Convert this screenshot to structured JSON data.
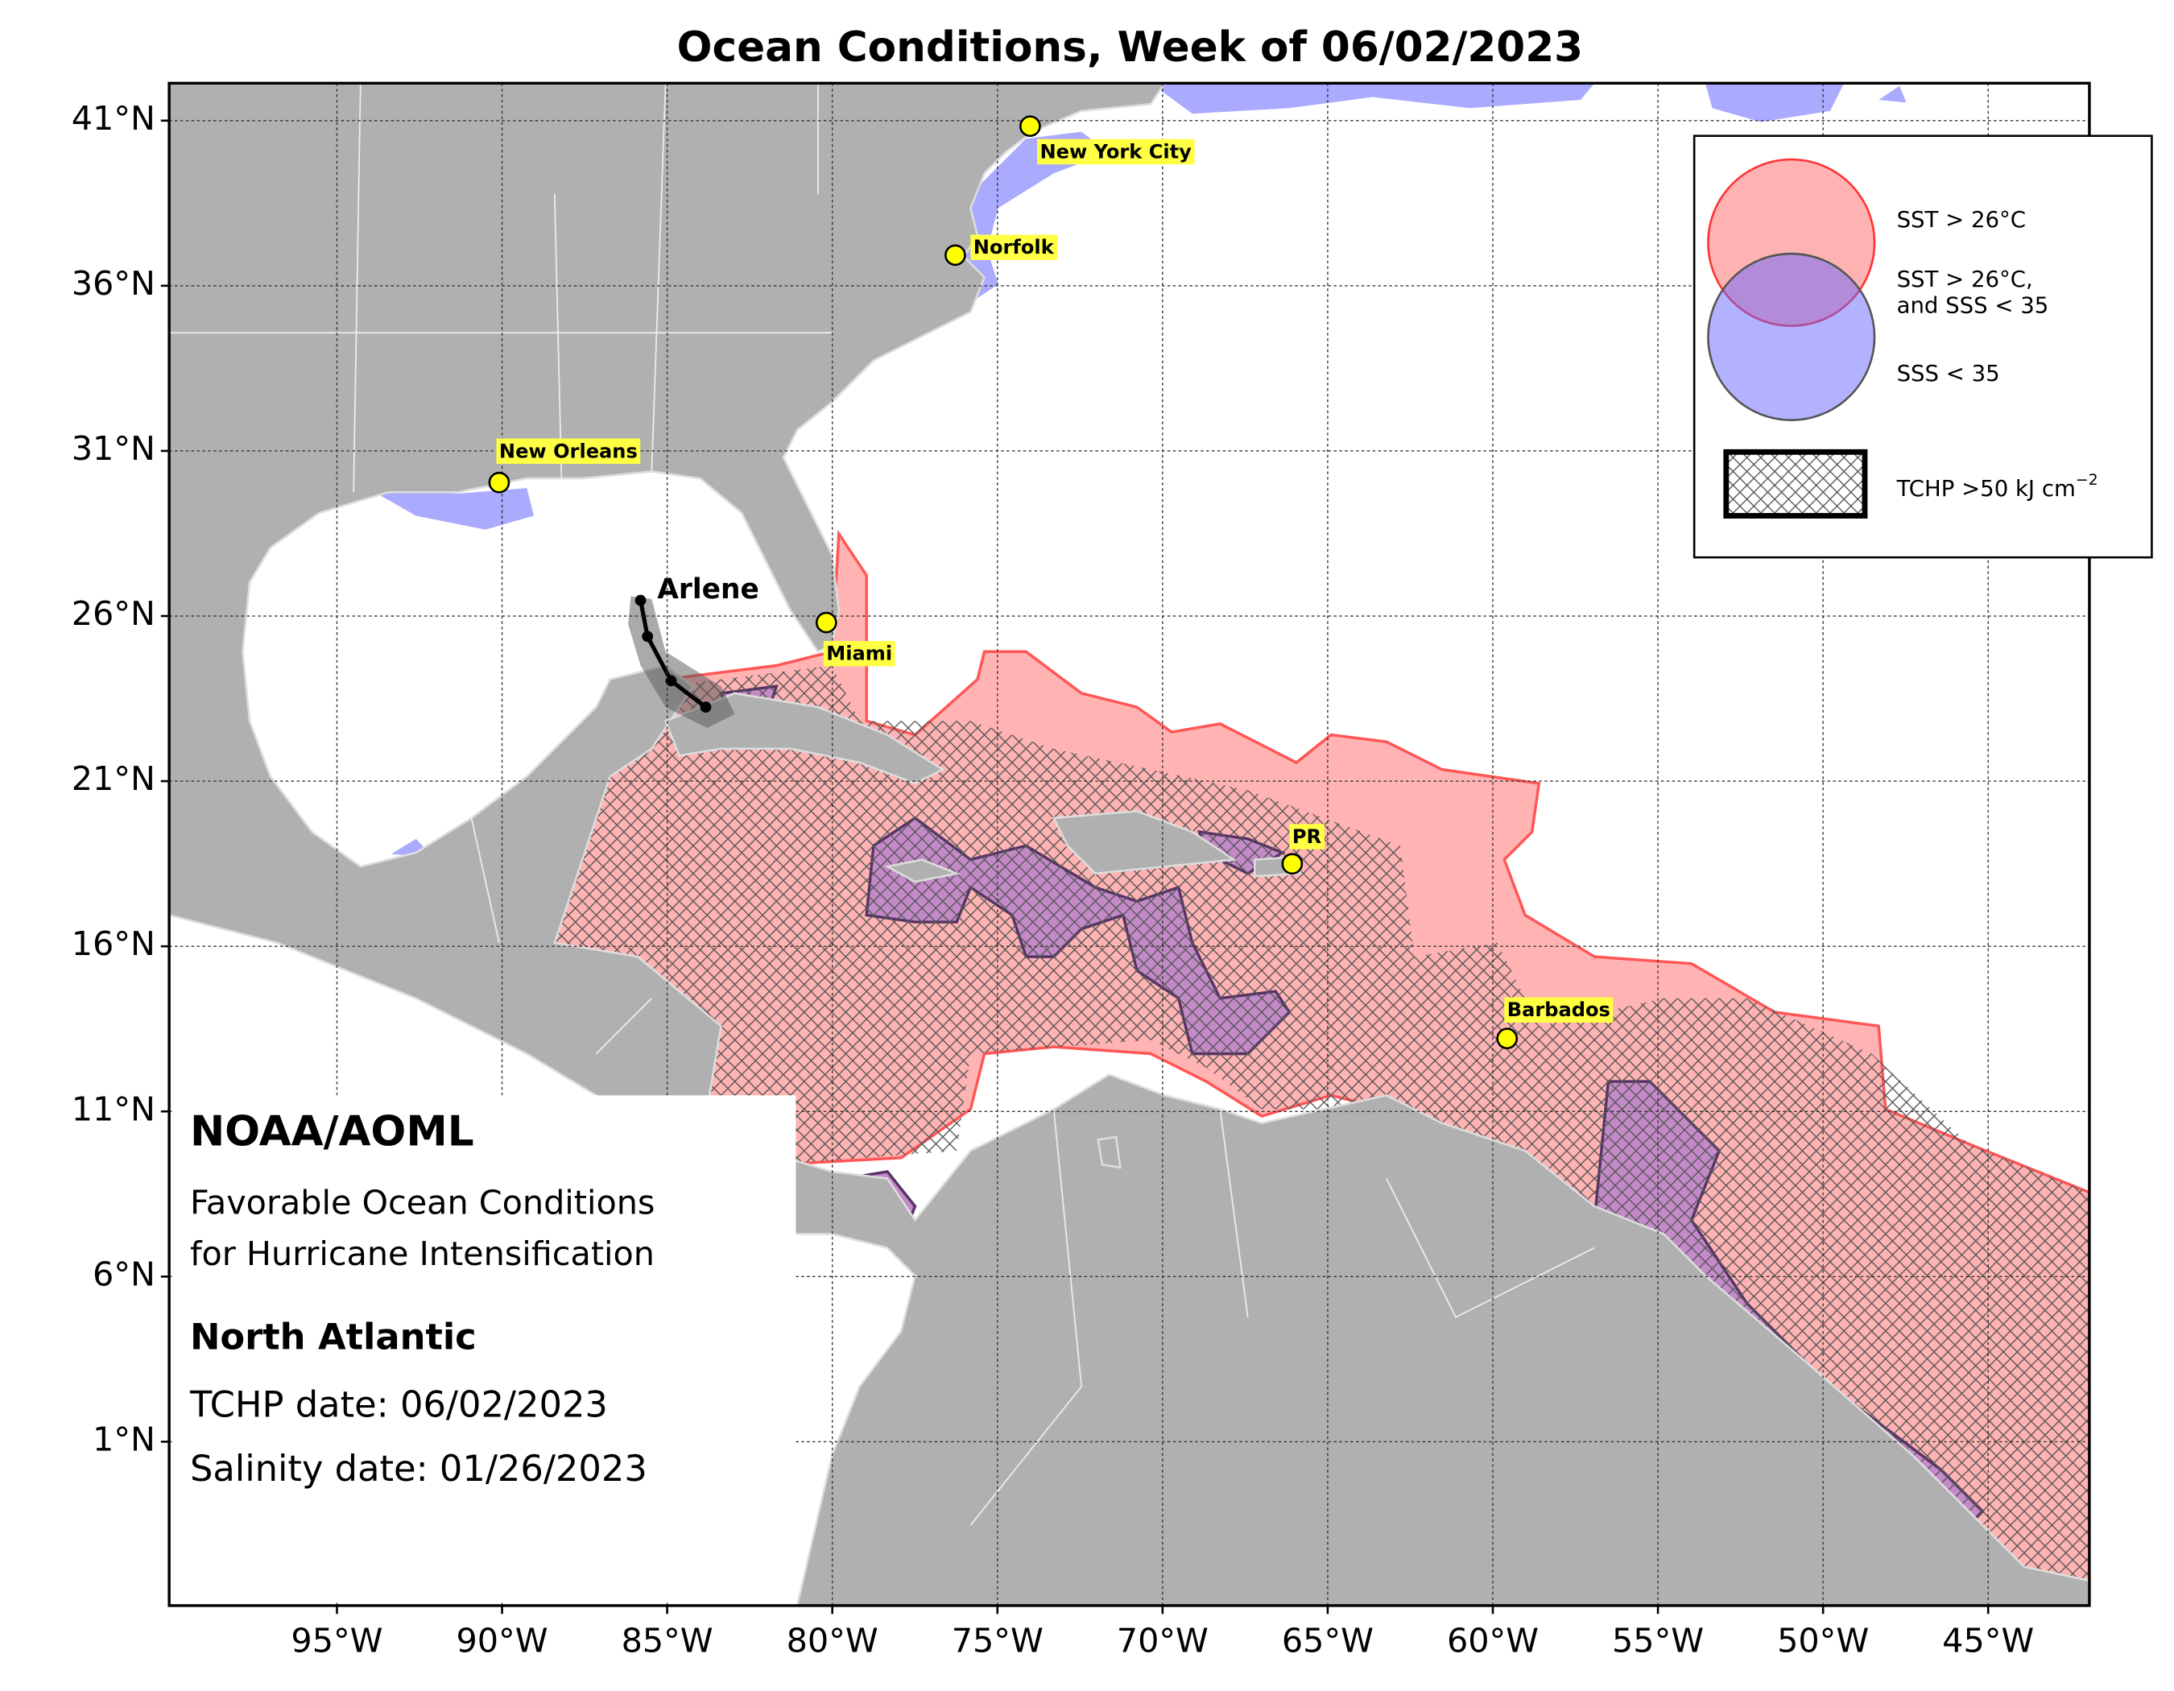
{
  "title": "Ocean Conditions, Week of 06/02/2023",
  "lat_ticks": [
    {
      "value": 41,
      "label": "41°N"
    },
    {
      "value": 36,
      "label": "36°N"
    },
    {
      "value": 31,
      "label": "31°N"
    },
    {
      "value": 26,
      "label": "26°N"
    },
    {
      "value": 21,
      "label": "21°N"
    },
    {
      "value": 16,
      "label": "16°N"
    },
    {
      "value": 11,
      "label": "11°N"
    },
    {
      "value": 6,
      "label": "6°N"
    },
    {
      "value": 1,
      "label": "1°N"
    }
  ],
  "lon_ticks": [
    {
      "value": -95,
      "label": "95°W"
    },
    {
      "value": -90,
      "label": "90°W"
    },
    {
      "value": -85,
      "label": "85°W"
    },
    {
      "value": -80,
      "label": "80°W"
    },
    {
      "value": -75,
      "label": "75°W"
    },
    {
      "value": -70,
      "label": "70°W"
    },
    {
      "value": -65,
      "label": "65°W"
    },
    {
      "value": -60,
      "label": "60°W"
    },
    {
      "value": -55,
      "label": "55°W"
    },
    {
      "value": -50,
      "label": "50°W"
    },
    {
      "value": -45,
      "label": "45°W"
    }
  ],
  "cities": [
    "New York City",
    "Norfolk",
    "New Orleans",
    "Miami",
    "PR",
    "Barbados"
  ],
  "storm": "Arlene",
  "legend": {
    "sst": "SST > 26°C",
    "both": [
      "SST > 26°C,",
      "and SSS < 35"
    ],
    "sss": "SSS < 35",
    "tchp": {
      "text": "TCHP >50 kJ cm",
      "superscript": "−2"
    }
  },
  "info": {
    "org": "NOAA/AOML",
    "subtitle_lines": [
      "Favorable Ocean Conditions",
      "for Hurricane Intensification"
    ],
    "region": "North Atlantic",
    "tchp_date": "TCHP date: 06/02/2023",
    "salinity_date": "Salinity date: 01/26/2023"
  }
}
